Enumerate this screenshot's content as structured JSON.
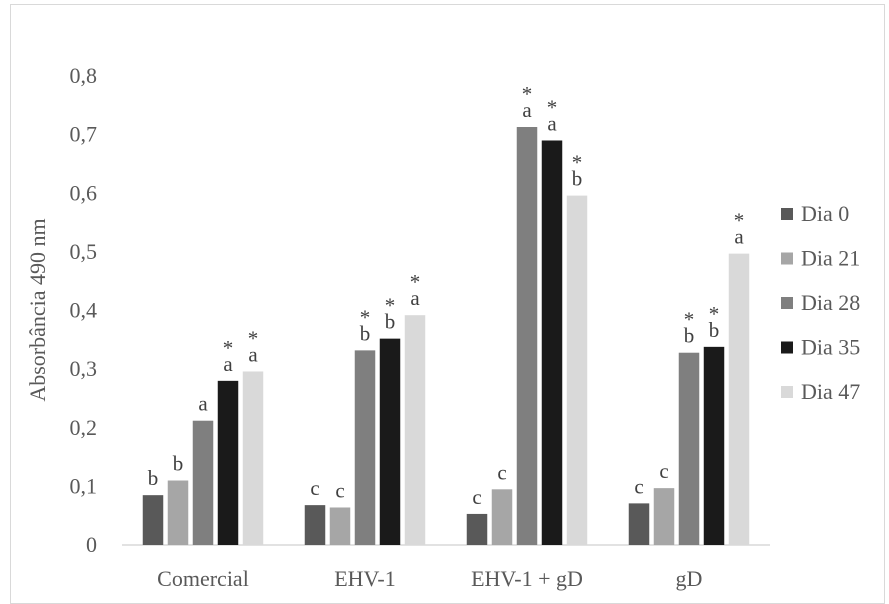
{
  "chart_data": {
    "type": "bar",
    "title": "",
    "xlabel": "",
    "ylabel": "Absorbância 490 nm",
    "ylim": [
      0,
      0.8
    ],
    "yticks": [
      "0",
      "0,1",
      "0,2",
      "0,3",
      "0,4",
      "0,5",
      "0,6",
      "0,7",
      "0,8"
    ],
    "grid": false,
    "legend_position": "right",
    "categories": [
      "Comercial",
      "EHV-1",
      "EHV-1 + gD",
      "gD"
    ],
    "series": [
      {
        "name": "Dia 0",
        "color": "#595959",
        "values": [
          0.085,
          0.068,
          0.053,
          0.071
        ],
        "labels": [
          "b",
          "c",
          "c",
          "c"
        ],
        "stars": [
          "",
          "",
          "",
          ""
        ]
      },
      {
        "name": "Dia 21",
        "color": "#a6a6a6",
        "values": [
          0.11,
          0.064,
          0.095,
          0.097
        ],
        "labels": [
          "b",
          "c",
          "c",
          "c"
        ],
        "stars": [
          "",
          "",
          "",
          ""
        ]
      },
      {
        "name": "Dia 28",
        "color": "#7f7f7f",
        "values": [
          0.212,
          0.332,
          0.713,
          0.328
        ],
        "labels": [
          "a",
          "b",
          "a",
          "b"
        ],
        "stars": [
          "",
          "*",
          "*",
          "*"
        ]
      },
      {
        "name": "Dia 35",
        "color": "#1a1a1a",
        "values": [
          0.28,
          0.352,
          0.69,
          0.338
        ],
        "labels": [
          "a",
          "b",
          "a",
          "b"
        ],
        "stars": [
          "*",
          "*",
          "*",
          "*"
        ]
      },
      {
        "name": "Dia 47",
        "color": "#d9d9d9",
        "values": [
          0.296,
          0.392,
          0.596,
          0.497
        ],
        "labels": [
          "a",
          "a",
          "b",
          "a"
        ],
        "stars": [
          "*",
          "*",
          "*",
          "*"
        ]
      }
    ]
  }
}
